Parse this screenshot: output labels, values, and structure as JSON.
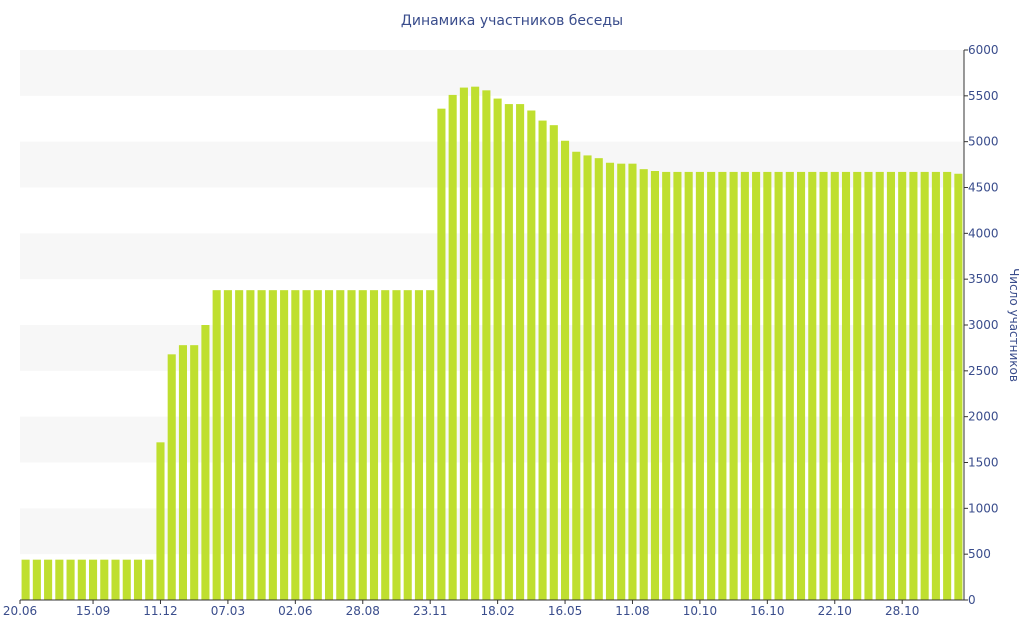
{
  "chart_data": {
    "type": "bar",
    "title": "Динамика участников беседы",
    "ylabel": "Число участников",
    "yaxis_position": "right",
    "ylim": [
      0,
      6000
    ],
    "yticks": [
      0,
      500,
      1000,
      1500,
      2000,
      2500,
      3000,
      3500,
      4000,
      4500,
      5000,
      5500,
      6000
    ],
    "xtick_labels": [
      "20.06",
      "15.09",
      "11.12",
      "07.03",
      "02.06",
      "28.08",
      "23.11",
      "18.02",
      "16.05",
      "11.08",
      "10.10",
      "16.10",
      "22.10",
      "28.10"
    ],
    "xtick_category_index": [
      0,
      6,
      12,
      18,
      24,
      30,
      36,
      42,
      48,
      54,
      60,
      66,
      72,
      78
    ],
    "grid": "alternating horizontal bands",
    "bar_color": "#bfdf2f",
    "values": [
      440,
      440,
      440,
      440,
      440,
      440,
      440,
      440,
      440,
      440,
      440,
      440,
      1720,
      2680,
      2780,
      2780,
      3000,
      3380,
      3380,
      3380,
      3380,
      3380,
      3380,
      3380,
      3380,
      3380,
      3380,
      3380,
      3380,
      3380,
      3380,
      3380,
      3380,
      3380,
      3380,
      3380,
      3380,
      5360,
      5510,
      5590,
      5600,
      5560,
      5470,
      5410,
      5410,
      5340,
      5230,
      5180,
      5010,
      4890,
      4850,
      4820,
      4770,
      4760,
      4760,
      4700,
      4680,
      4670,
      4670,
      4670,
      4670,
      4670,
      4670,
      4670,
      4670,
      4670,
      4670,
      4670,
      4670,
      4670,
      4670,
      4670,
      4670,
      4670,
      4670,
      4670,
      4670,
      4670,
      4670,
      4670,
      4670,
      4670,
      4670,
      4650
    ]
  }
}
